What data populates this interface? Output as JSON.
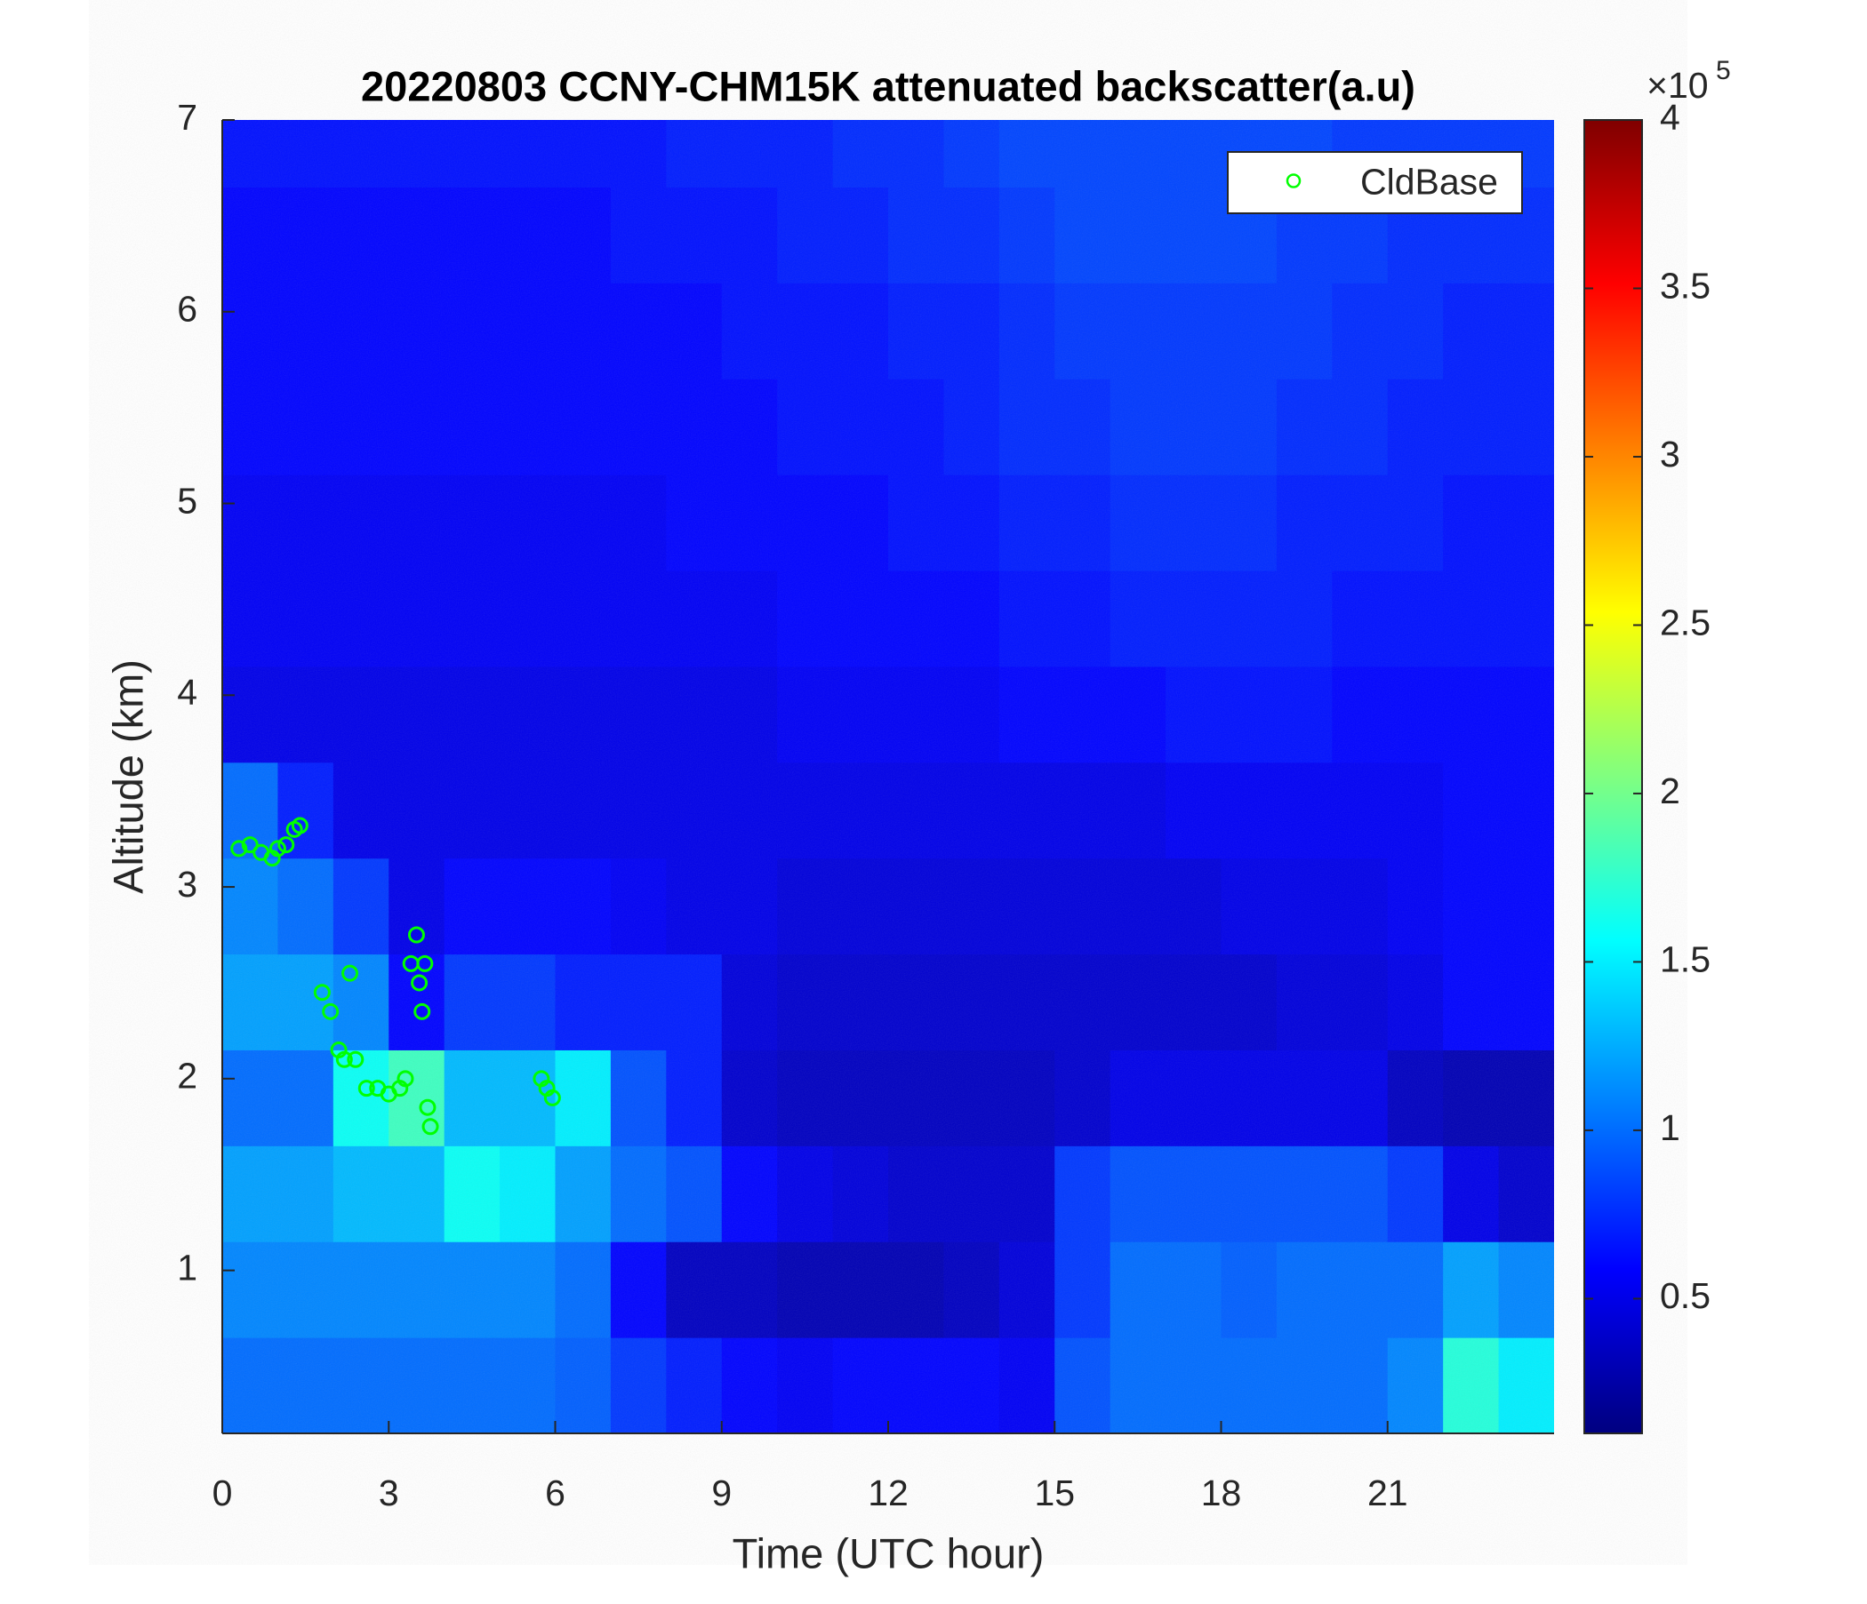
{
  "chart_data": {
    "type": "heatmap",
    "title": "20220803 CCNY-CHM15K attenuated backscatter(a.u)",
    "xlabel": "Time (UTC hour)",
    "ylabel": "Altitude (km)",
    "xlim": [
      0,
      24
    ],
    "ylim": [
      0.15,
      7
    ],
    "xticks": [
      0,
      3,
      6,
      9,
      12,
      15,
      18,
      21
    ],
    "yticks": [
      1,
      2,
      3,
      4,
      5,
      6,
      7
    ],
    "colormap": "jet",
    "clim": [
      0.1,
      4
    ],
    "cticks": [
      0.5,
      1,
      1.5,
      2,
      2.5,
      3,
      3.5,
      4
    ],
    "colorbar_exponent": {
      "base": "×10",
      "power": "5"
    },
    "x": [
      0.5,
      1.5,
      2.5,
      3.5,
      4.5,
      5.5,
      6.5,
      7.5,
      8.5,
      9.5,
      10.5,
      11.5,
      12.5,
      13.5,
      14.5,
      15.5,
      16.5,
      17.5,
      18.5,
      19.5,
      20.5,
      21.5,
      22.5,
      23.5
    ],
    "y": [
      0.4,
      0.9,
      1.4,
      1.9,
      2.4,
      2.9,
      3.4,
      3.9,
      4.4,
      4.9,
      5.4,
      5.9,
      6.4,
      6.9
    ],
    "z": [
      [
        1.0,
        1.0,
        1.0,
        1.0,
        1.0,
        1.0,
        0.95,
        0.8,
        0.7,
        0.6,
        0.55,
        0.6,
        0.6,
        0.6,
        0.55,
        0.9,
        1.0,
        1.0,
        1.0,
        1.0,
        1.0,
        1.1,
        1.7,
        1.5
      ],
      [
        1.1,
        1.1,
        1.1,
        1.1,
        1.1,
        1.1,
        1.0,
        0.6,
        0.35,
        0.35,
        0.3,
        0.3,
        0.3,
        0.35,
        0.45,
        0.8,
        1.0,
        1.0,
        0.95,
        1.0,
        1.0,
        1.0,
        1.2,
        1.1
      ],
      [
        1.2,
        1.2,
        1.3,
        1.3,
        1.6,
        1.5,
        1.2,
        1.0,
        0.9,
        0.6,
        0.5,
        0.45,
        0.4,
        0.4,
        0.4,
        0.8,
        0.9,
        0.9,
        0.9,
        0.9,
        0.9,
        0.8,
        0.5,
        0.4
      ],
      [
        1.0,
        1.0,
        1.6,
        1.8,
        1.3,
        1.3,
        1.5,
        0.9,
        0.7,
        0.4,
        0.35,
        0.35,
        0.35,
        0.35,
        0.35,
        0.4,
        0.5,
        0.5,
        0.5,
        0.5,
        0.5,
        0.35,
        0.3,
        0.3
      ],
      [
        1.2,
        1.2,
        1.1,
        0.6,
        0.8,
        0.8,
        0.7,
        0.7,
        0.7,
        0.45,
        0.4,
        0.4,
        0.4,
        0.4,
        0.4,
        0.4,
        0.4,
        0.4,
        0.4,
        0.45,
        0.45,
        0.5,
        0.6,
        0.6
      ],
      [
        1.1,
        1.0,
        0.8,
        0.5,
        0.6,
        0.6,
        0.6,
        0.55,
        0.5,
        0.5,
        0.45,
        0.45,
        0.45,
        0.45,
        0.45,
        0.45,
        0.45,
        0.45,
        0.5,
        0.5,
        0.5,
        0.55,
        0.6,
        0.6
      ],
      [
        1.0,
        0.7,
        0.5,
        0.5,
        0.5,
        0.5,
        0.5,
        0.5,
        0.5,
        0.5,
        0.5,
        0.5,
        0.5,
        0.5,
        0.5,
        0.5,
        0.5,
        0.55,
        0.55,
        0.55,
        0.55,
        0.55,
        0.6,
        0.6
      ],
      [
        0.5,
        0.5,
        0.5,
        0.5,
        0.5,
        0.5,
        0.5,
        0.5,
        0.5,
        0.5,
        0.55,
        0.55,
        0.55,
        0.55,
        0.6,
        0.6,
        0.6,
        0.65,
        0.65,
        0.65,
        0.6,
        0.6,
        0.6,
        0.6
      ],
      [
        0.55,
        0.55,
        0.55,
        0.55,
        0.55,
        0.55,
        0.55,
        0.55,
        0.55,
        0.55,
        0.6,
        0.6,
        0.6,
        0.6,
        0.65,
        0.65,
        0.7,
        0.7,
        0.7,
        0.7,
        0.65,
        0.65,
        0.65,
        0.65
      ],
      [
        0.55,
        0.55,
        0.55,
        0.55,
        0.55,
        0.55,
        0.55,
        0.55,
        0.6,
        0.6,
        0.6,
        0.6,
        0.65,
        0.65,
        0.7,
        0.7,
        0.75,
        0.75,
        0.75,
        0.7,
        0.7,
        0.7,
        0.65,
        0.65
      ],
      [
        0.6,
        0.6,
        0.6,
        0.6,
        0.6,
        0.6,
        0.6,
        0.6,
        0.6,
        0.6,
        0.65,
        0.65,
        0.65,
        0.7,
        0.75,
        0.75,
        0.8,
        0.8,
        0.8,
        0.75,
        0.75,
        0.7,
        0.7,
        0.7
      ],
      [
        0.6,
        0.6,
        0.6,
        0.6,
        0.6,
        0.6,
        0.6,
        0.6,
        0.6,
        0.65,
        0.65,
        0.65,
        0.7,
        0.7,
        0.75,
        0.8,
        0.8,
        0.8,
        0.8,
        0.8,
        0.75,
        0.75,
        0.7,
        0.7
      ],
      [
        0.6,
        0.6,
        0.6,
        0.6,
        0.6,
        0.6,
        0.6,
        0.65,
        0.65,
        0.65,
        0.7,
        0.7,
        0.75,
        0.75,
        0.8,
        0.85,
        0.85,
        0.85,
        0.85,
        0.8,
        0.8,
        0.75,
        0.75,
        0.75
      ],
      [
        0.65,
        0.65,
        0.65,
        0.65,
        0.65,
        0.65,
        0.65,
        0.65,
        0.7,
        0.7,
        0.7,
        0.75,
        0.75,
        0.8,
        0.85,
        0.85,
        0.85,
        0.85,
        0.85,
        0.85,
        0.8,
        0.8,
        0.8,
        0.8
      ]
    ],
    "legend": "northeast",
    "series": [
      {
        "name": "CldBase",
        "type": "scatter",
        "color": "#00ff00",
        "x": [
          0.3,
          0.5,
          0.7,
          0.9,
          1.0,
          1.15,
          1.3,
          1.4,
          1.8,
          1.95,
          2.1,
          2.2,
          2.3,
          2.4,
          2.6,
          2.8,
          3.0,
          3.2,
          3.3,
          3.4,
          3.5,
          3.55,
          3.6,
          3.65,
          3.7,
          3.75,
          5.75,
          5.85,
          5.95
        ],
        "y": [
          3.2,
          3.22,
          3.18,
          3.15,
          3.2,
          3.22,
          3.3,
          3.32,
          2.45,
          2.35,
          2.15,
          2.1,
          2.55,
          2.1,
          1.95,
          1.95,
          1.92,
          1.95,
          2.0,
          2.6,
          2.75,
          2.5,
          2.35,
          2.6,
          1.85,
          1.75,
          2.0,
          1.95,
          1.9
        ]
      }
    ]
  }
}
